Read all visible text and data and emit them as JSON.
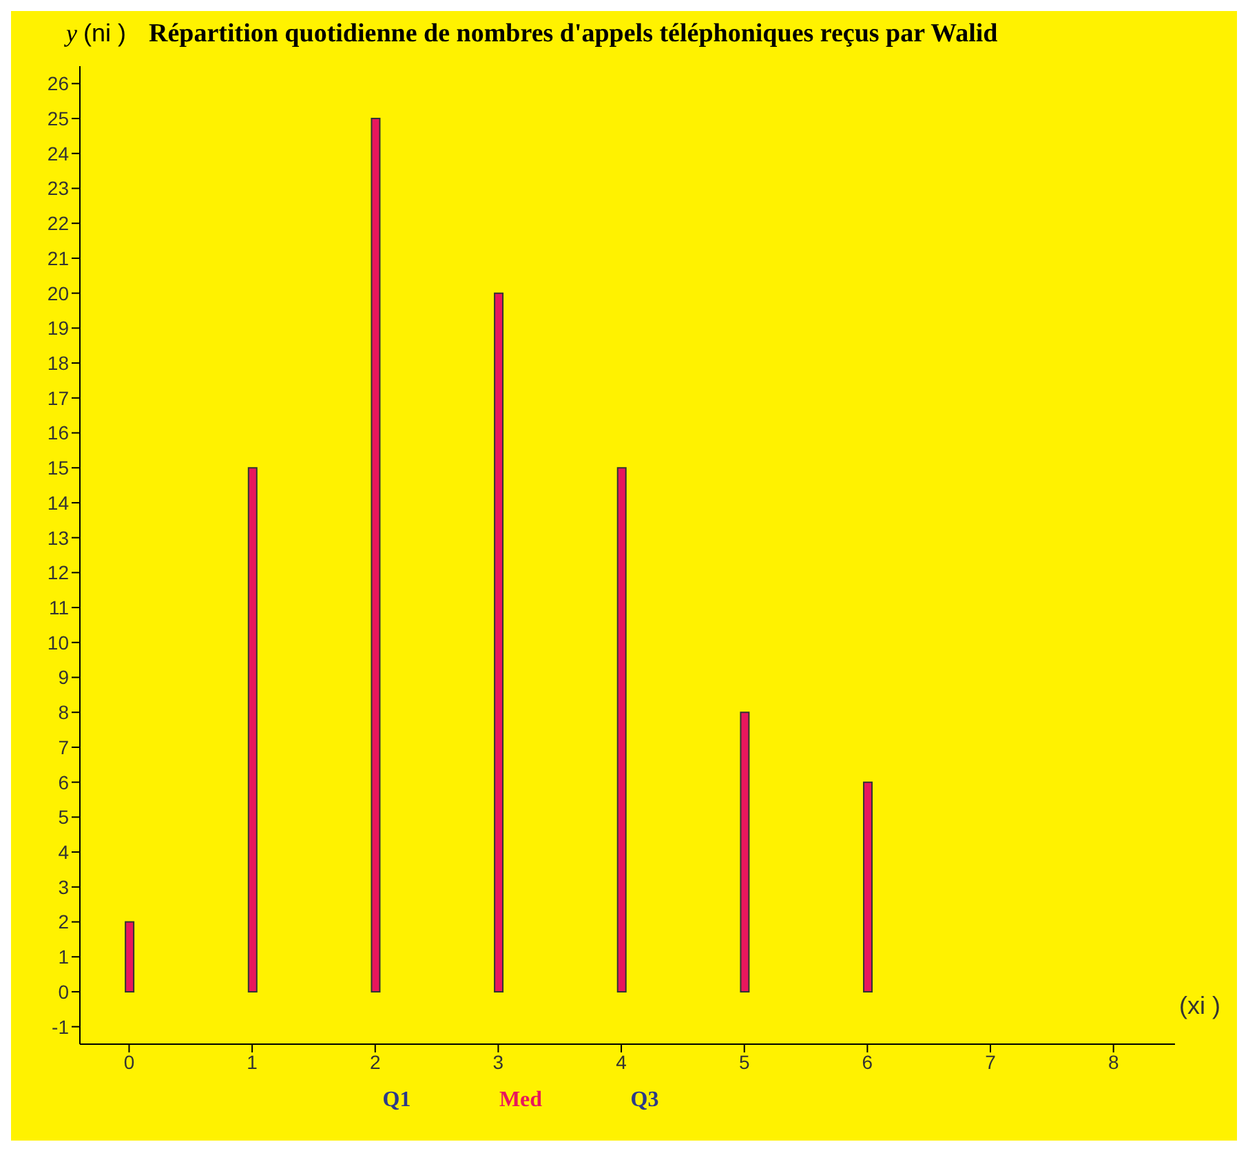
{
  "chart_data": {
    "type": "bar",
    "title": "Répartition  quotidienne de nombres d'appels téléphoniques reçus par Walid",
    "xlabel": "(xi )",
    "ylabel": "(ni )",
    "x": [
      0,
      1,
      2,
      3,
      4,
      5,
      6
    ],
    "values": [
      2,
      15,
      25,
      20,
      15,
      8,
      6
    ],
    "color": "#e8175d",
    "xlim": [
      -0.4,
      8.5
    ],
    "xticks": [
      0,
      1,
      2,
      3,
      4,
      5,
      6,
      7,
      8
    ],
    "ylim": [
      -1.5,
      26.5
    ],
    "yticks": [
      -1,
      0,
      1,
      2,
      3,
      4,
      5,
      6,
      7,
      8,
      9,
      10,
      11,
      12,
      13,
      14,
      15,
      16,
      17,
      18,
      19,
      20,
      21,
      22,
      23,
      24,
      25,
      26
    ],
    "annotations": [
      "y",
      "Q1",
      "Med",
      "Q3"
    ]
  }
}
